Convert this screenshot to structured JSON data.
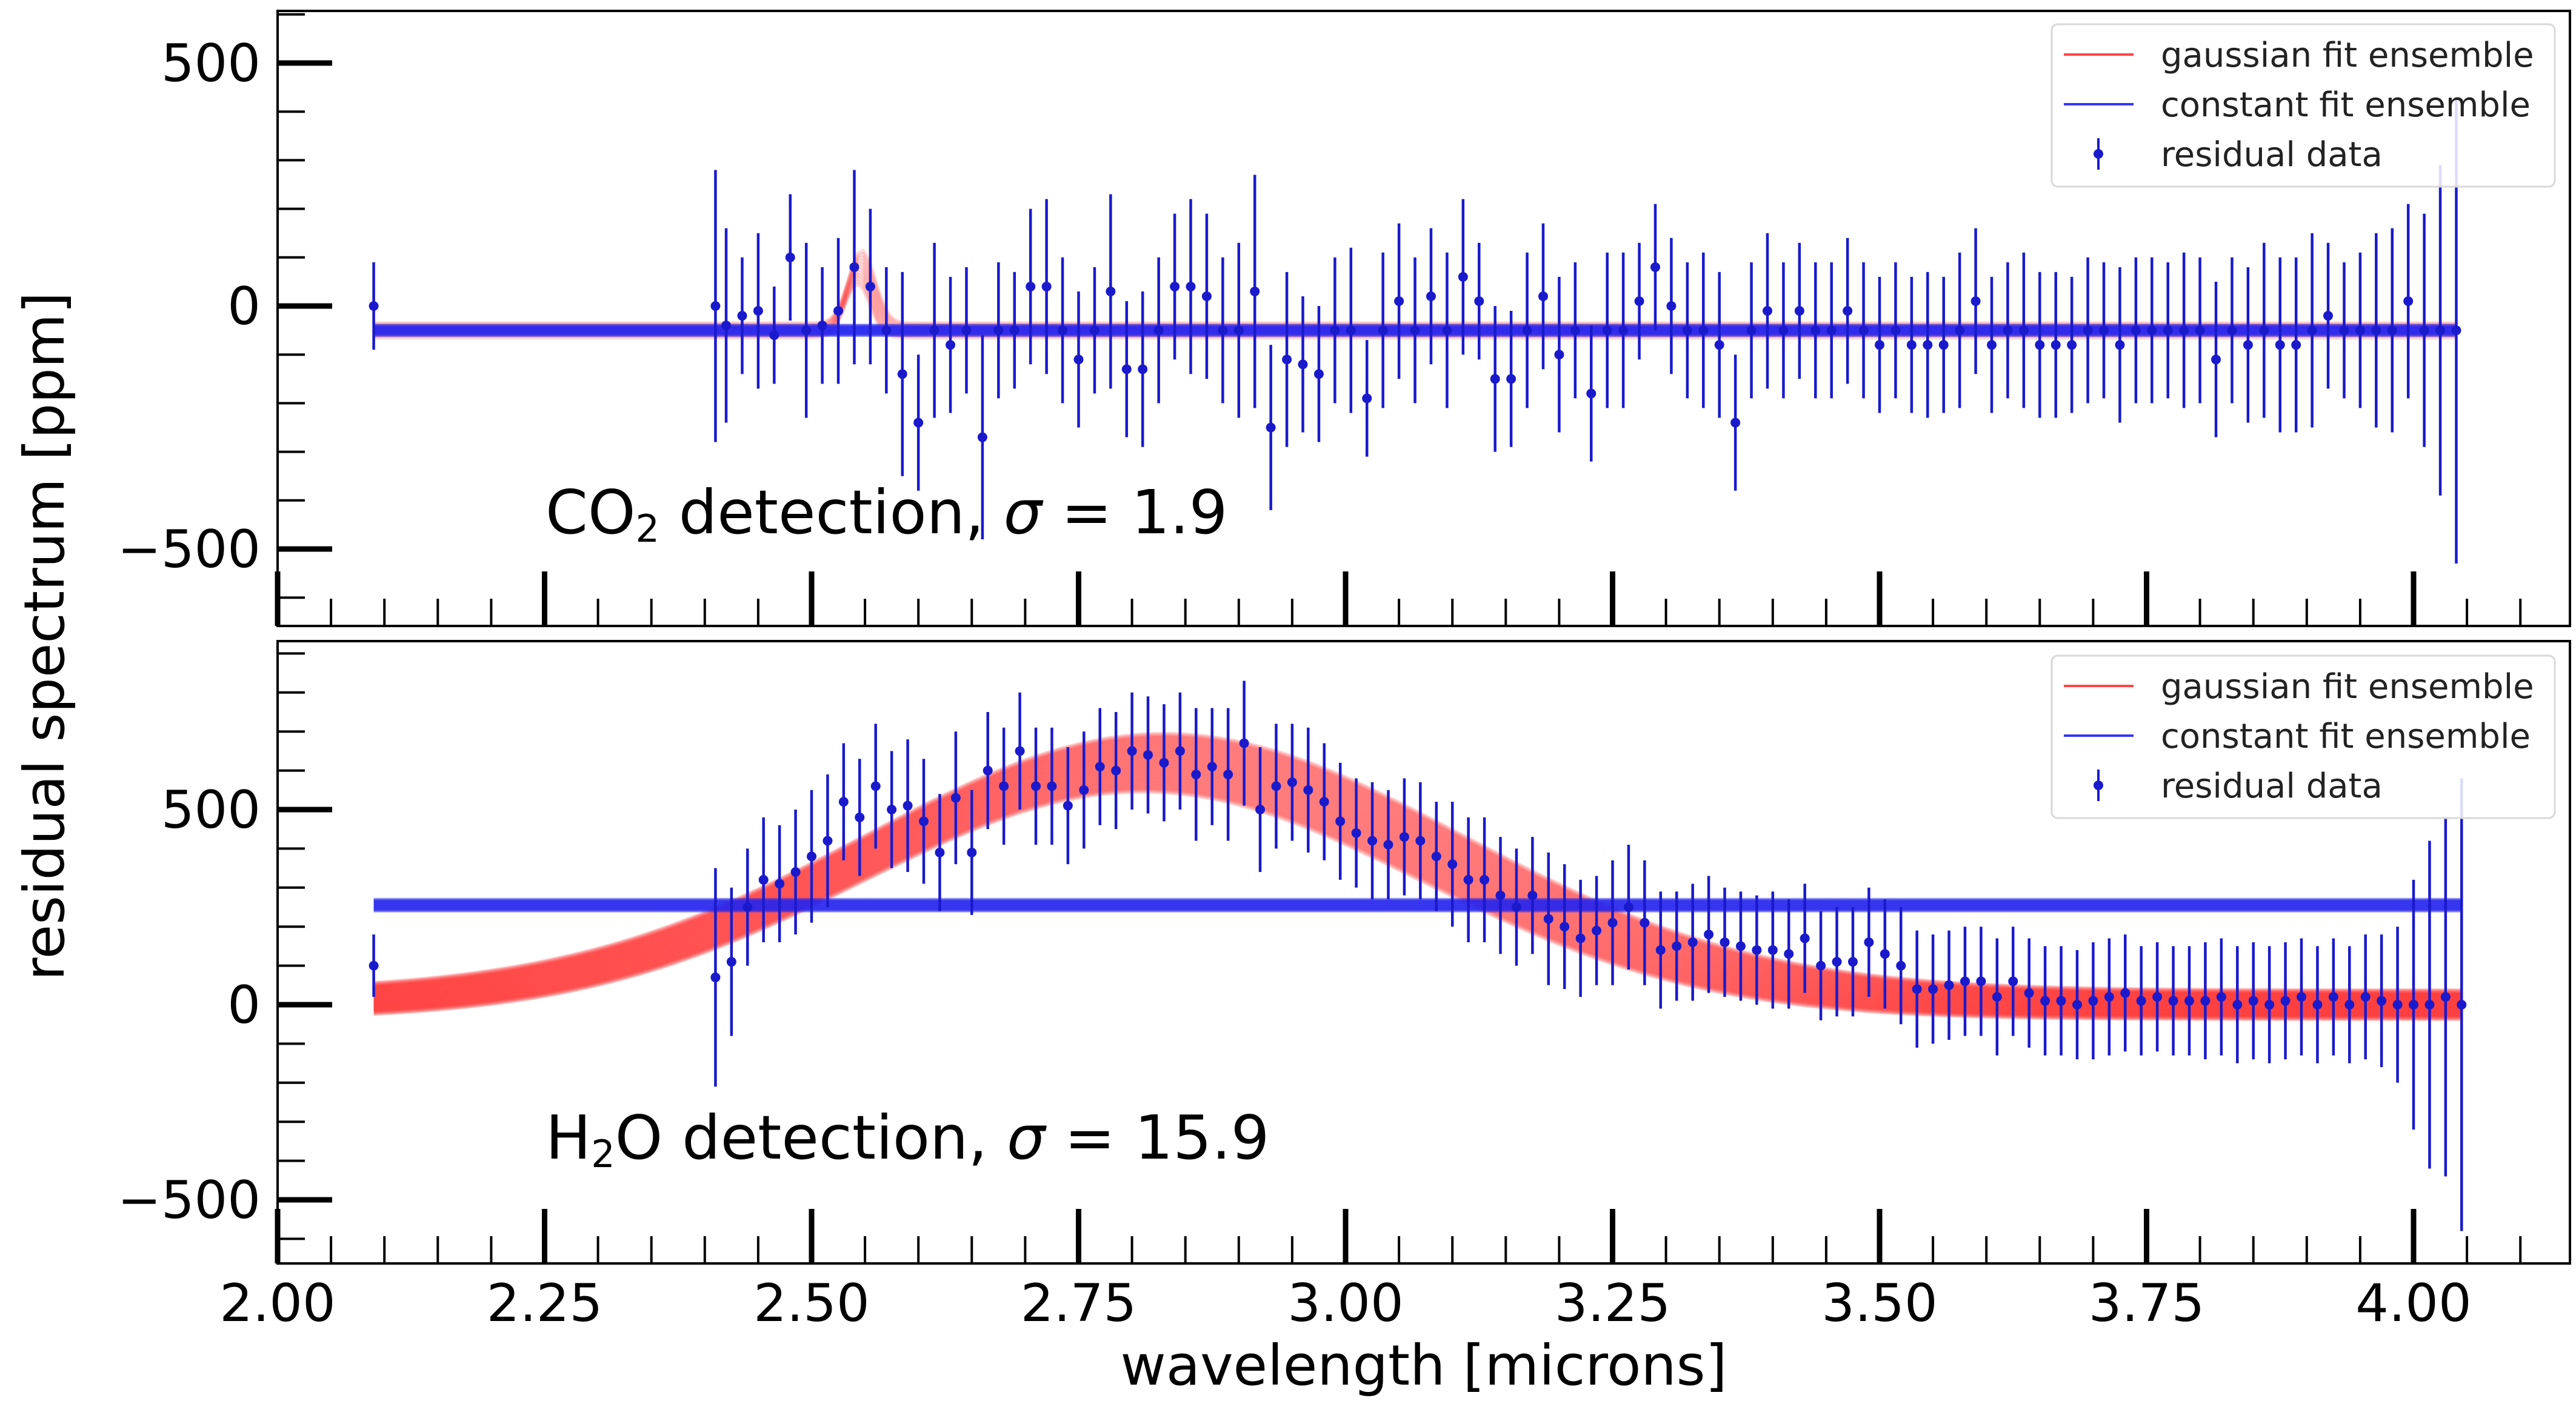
{
  "figure": {
    "xlabel": "wavelength [microns]",
    "ylabel": "residual spectrum [ppm]"
  },
  "chart_data": [
    {
      "type": "line",
      "panel": "top",
      "annotation": {
        "prefix": "CO",
        "sub": "2",
        "suffix": " detection, ",
        "sigma_symbol": "σ",
        "sigma_text": " = 1.9"
      },
      "xlim": [
        2.0,
        4.1
      ],
      "ylim": [
        -600,
        600
      ],
      "xticks": [
        "2.00",
        "2.25",
        "2.50",
        "2.75",
        "3.00",
        "3.25",
        "3.50",
        "3.75",
        "4.00"
      ],
      "yticks": [
        500,
        0,
        -500
      ],
      "ytick_labels": [
        "500",
        "0",
        "−500"
      ],
      "legend": {
        "placement": "top-right",
        "entries": [
          "gaussian fit ensemble",
          "constant fit ensemble",
          "residual data"
        ],
        "colors": [
          "#ff4444",
          "#3333ff",
          "#1a1acc"
        ]
      },
      "constant_fit": {
        "level": -50,
        "band": 20,
        "color": "#2626f0"
      },
      "gaussian_fit": {
        "baseline": -50,
        "amplitude": 130,
        "center": 2.545,
        "width": 0.012,
        "color": "#ff3030"
      },
      "series": [
        {
          "name": "residual data",
          "x": [
            2.09,
            2.41,
            2.42,
            2.435,
            2.45,
            2.465,
            2.48,
            2.495,
            2.51,
            2.525,
            2.54,
            2.555,
            2.57,
            2.585,
            2.6,
            2.615,
            2.63,
            2.645,
            2.66,
            2.675,
            2.69,
            2.705,
            2.72,
            2.735,
            2.75,
            2.765,
            2.78,
            2.795,
            2.81,
            2.825,
            2.84,
            2.855,
            2.87,
            2.885,
            2.9,
            2.915,
            2.93,
            2.945,
            2.96,
            2.975,
            2.99,
            3.005,
            3.02,
            3.035,
            3.05,
            3.065,
            3.08,
            3.095,
            3.11,
            3.125,
            3.14,
            3.155,
            3.17,
            3.185,
            3.2,
            3.215,
            3.23,
            3.245,
            3.26,
            3.275,
            3.29,
            3.305,
            3.32,
            3.335,
            3.35,
            3.365,
            3.38,
            3.395,
            3.41,
            3.425,
            3.44,
            3.455,
            3.47,
            3.485,
            3.5,
            3.515,
            3.53,
            3.545,
            3.56,
            3.575,
            3.59,
            3.605,
            3.62,
            3.635,
            3.65,
            3.665,
            3.68,
            3.695,
            3.71,
            3.725,
            3.74,
            3.755,
            3.77,
            3.785,
            3.8,
            3.815,
            3.83,
            3.845,
            3.86,
            3.875,
            3.89,
            3.905,
            3.92,
            3.935,
            3.95,
            3.965,
            3.98,
            3.995,
            4.01,
            4.025,
            4.04
          ],
          "y": [
            0,
            0,
            -40,
            -20,
            -10,
            -60,
            100,
            -50,
            -40,
            -10,
            80,
            40,
            -50,
            -140,
            -240,
            -50,
            -80,
            -50,
            -270,
            -50,
            -50,
            40,
            40,
            -50,
            -110,
            -50,
            30,
            -130,
            -130,
            -50,
            40,
            40,
            20,
            -50,
            -50,
            30,
            -250,
            -110,
            -120,
            -140,
            -50,
            -50,
            -190,
            -50,
            10,
            -50,
            20,
            -50,
            60,
            10,
            -150,
            -150,
            -50,
            20,
            -100,
            -50,
            -180,
            -50,
            -50,
            10,
            80,
            0,
            -50,
            -50,
            -80,
            -240,
            -50,
            -10,
            -50,
            -10,
            -50,
            -50,
            -10,
            -50,
            -80,
            -50,
            -80,
            -80,
            -80,
            -50,
            10,
            -80,
            -50,
            -50,
            -80,
            -80,
            -80,
            -50,
            -50,
            -80,
            -50,
            -50,
            -50,
            -50,
            -50,
            -110,
            -50,
            -80,
            -50,
            -80,
            -80,
            -50,
            -20,
            -50,
            -50,
            -50,
            -50,
            10,
            -50,
            -50,
            -50
          ],
          "err": [
            90,
            280,
            200,
            120,
            160,
            100,
            130,
            180,
            120,
            150,
            200,
            160,
            130,
            210,
            140,
            180,
            140,
            130,
            210,
            140,
            120,
            160,
            180,
            150,
            140,
            130,
            200,
            140,
            160,
            150,
            150,
            180,
            170,
            150,
            180,
            240,
            170,
            180,
            140,
            140,
            150,
            170,
            120,
            160,
            160,
            150,
            140,
            160,
            160,
            120,
            150,
            140,
            160,
            150,
            160,
            140,
            140,
            160,
            160,
            120,
            130,
            140,
            140,
            160,
            150,
            140,
            140,
            160,
            140,
            140,
            140,
            140,
            150,
            140,
            140,
            140,
            140,
            150,
            140,
            160,
            150,
            140,
            140,
            160,
            150,
            150,
            140,
            150,
            140,
            160,
            150,
            150,
            140,
            160,
            150,
            160,
            150,
            160,
            180,
            180,
            180,
            200,
            150,
            140,
            160,
            200,
            210,
            200,
            240,
            340,
            480
          ]
        }
      ]
    },
    {
      "type": "line",
      "panel": "bottom",
      "annotation": {
        "prefix": "H",
        "sub": "2",
        "suffix": "O detection, ",
        "sigma_symbol": "σ",
        "sigma_text": " = 15.9"
      },
      "xlim": [
        2.0,
        4.1
      ],
      "ylim": [
        -600,
        900
      ],
      "xticks": [
        "2.00",
        "2.25",
        "2.50",
        "2.75",
        "3.00",
        "3.25",
        "3.50",
        "3.75",
        "4.00"
      ],
      "yticks": [
        500,
        0,
        -500
      ],
      "ytick_labels": [
        "500",
        "0",
        "−500"
      ],
      "legend": {
        "placement": "top-right",
        "entries": [
          "gaussian fit ensemble",
          "constant fit ensemble",
          "residual data"
        ],
        "colors": [
          "#ff4444",
          "#3333ff",
          "#1a1acc"
        ]
      },
      "constant_fit": {
        "level": 255,
        "band": 28,
        "color": "#2626f0"
      },
      "gaussian_fit": {
        "baseline": 0,
        "amplitude": 620,
        "center": 2.82,
        "width": 0.27,
        "color": "#ff2020"
      },
      "series": [
        {
          "name": "residual data",
          "x": [
            2.09,
            2.41,
            2.425,
            2.44,
            2.455,
            2.47,
            2.485,
            2.5,
            2.515,
            2.53,
            2.545,
            2.56,
            2.575,
            2.59,
            2.605,
            2.62,
            2.635,
            2.65,
            2.665,
            2.68,
            2.695,
            2.71,
            2.725,
            2.74,
            2.755,
            2.77,
            2.785,
            2.8,
            2.815,
            2.83,
            2.845,
            2.86,
            2.875,
            2.89,
            2.905,
            2.92,
            2.935,
            2.95,
            2.965,
            2.98,
            2.995,
            3.01,
            3.025,
            3.04,
            3.055,
            3.07,
            3.085,
            3.1,
            3.115,
            3.13,
            3.145,
            3.16,
            3.175,
            3.19,
            3.205,
            3.22,
            3.235,
            3.25,
            3.265,
            3.28,
            3.295,
            3.31,
            3.325,
            3.34,
            3.355,
            3.37,
            3.385,
            3.4,
            3.415,
            3.43,
            3.445,
            3.46,
            3.475,
            3.49,
            3.505,
            3.52,
            3.535,
            3.55,
            3.565,
            3.58,
            3.595,
            3.61,
            3.625,
            3.64,
            3.655,
            3.67,
            3.685,
            3.7,
            3.715,
            3.73,
            3.745,
            3.76,
            3.775,
            3.79,
            3.805,
            3.82,
            3.835,
            3.85,
            3.865,
            3.88,
            3.895,
            3.91,
            3.925,
            3.94,
            3.955,
            3.97,
            3.985,
            4.0,
            4.015,
            4.03,
            4.045
          ],
          "y": [
            100,
            70,
            110,
            250,
            320,
            310,
            340,
            380,
            420,
            520,
            480,
            560,
            500,
            510,
            470,
            390,
            530,
            390,
            600,
            560,
            650,
            560,
            560,
            510,
            550,
            610,
            600,
            650,
            640,
            620,
            650,
            590,
            610,
            590,
            670,
            500,
            560,
            570,
            550,
            520,
            470,
            440,
            420,
            410,
            430,
            420,
            380,
            360,
            320,
            320,
            280,
            250,
            280,
            220,
            200,
            170,
            190,
            210,
            250,
            210,
            140,
            150,
            160,
            180,
            160,
            150,
            140,
            140,
            130,
            170,
            100,
            110,
            110,
            160,
            130,
            100,
            40,
            40,
            50,
            60,
            60,
            20,
            60,
            30,
            10,
            10,
            0,
            10,
            20,
            30,
            10,
            20,
            10,
            10,
            10,
            20,
            0,
            10,
            0,
            10,
            20,
            0,
            20,
            0,
            20,
            10,
            0,
            0,
            0,
            20,
            0
          ],
          "err": [
            80,
            280,
            190,
            150,
            160,
            150,
            160,
            170,
            170,
            150,
            150,
            160,
            150,
            170,
            160,
            150,
            170,
            160,
            150,
            150,
            150,
            150,
            150,
            150,
            150,
            150,
            150,
            150,
            150,
            150,
            150,
            170,
            150,
            170,
            160,
            160,
            160,
            150,
            160,
            150,
            150,
            140,
            150,
            140,
            150,
            150,
            140,
            160,
            160,
            160,
            150,
            150,
            150,
            170,
            160,
            150,
            140,
            160,
            160,
            160,
            150,
            140,
            150,
            150,
            140,
            140,
            140,
            150,
            140,
            140,
            140,
            140,
            140,
            140,
            140,
            150,
            150,
            140,
            140,
            140,
            140,
            150,
            140,
            140,
            140,
            140,
            140,
            150,
            150,
            150,
            140,
            140,
            140,
            140,
            150,
            150,
            150,
            150,
            150,
            150,
            150,
            150,
            150,
            150,
            160,
            170,
            200,
            320,
            420,
            460,
            580
          ]
        }
      ]
    }
  ]
}
